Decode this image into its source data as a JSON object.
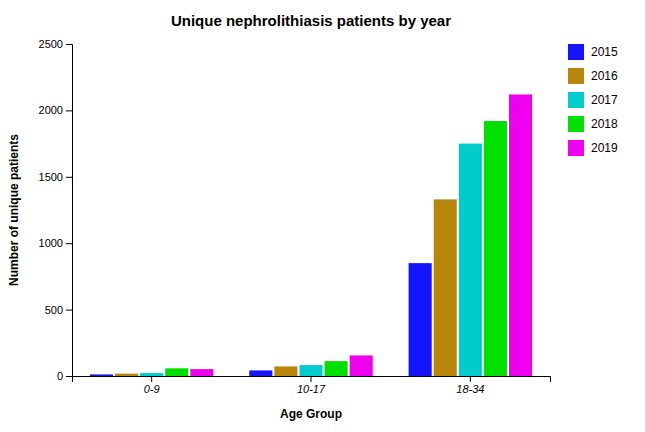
{
  "chart_data": {
    "type": "bar",
    "title": "Unique nephrolithiasis patients by year",
    "xlabel": "Age Group",
    "ylabel": "Number of unique patients",
    "categories": [
      "0-9",
      "10-17",
      "18-34"
    ],
    "series": [
      {
        "name": "2015",
        "color": "#1414FF",
        "values": [
          12,
          42,
          850
        ]
      },
      {
        "name": "2016",
        "color": "#B8860B",
        "values": [
          18,
          72,
          1330
        ]
      },
      {
        "name": "2017",
        "color": "#00CCCC",
        "values": [
          22,
          82,
          1750
        ]
      },
      {
        "name": "2018",
        "color": "#00E000",
        "values": [
          58,
          112,
          1920
        ]
      },
      {
        "name": "2019",
        "color": "#EE00EE",
        "values": [
          52,
          155,
          2120
        ]
      }
    ],
    "ylim": [
      0,
      2500
    ],
    "yticks": [
      0,
      500,
      1000,
      1500,
      2000,
      2500
    ],
    "grid": false,
    "legend": "right"
  }
}
